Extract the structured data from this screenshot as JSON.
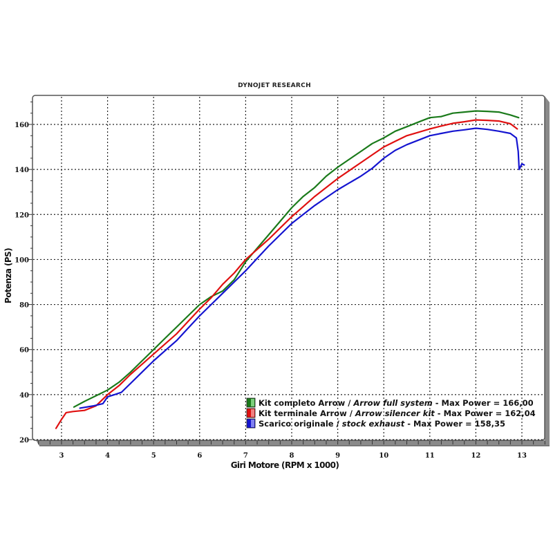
{
  "chart_data": {
    "type": "line",
    "title": "DYNOJET RESEARCH",
    "xlabel": "Giri Motore (RPM x 1000)",
    "ylabel": "Potenza (PS)",
    "xlim": [
      2.4,
      13.5
    ],
    "ylim": [
      19,
      173
    ],
    "x_ticks": [
      3,
      4,
      5,
      6,
      7,
      8,
      9,
      10,
      11,
      12,
      13
    ],
    "y_ticks": [
      20,
      40,
      60,
      80,
      100,
      120,
      140,
      160
    ],
    "grid": true,
    "legend_position": "lower right",
    "series": [
      {
        "name": "Kit completo Arrow / Arrow full system",
        "name_regular": "Kit completo Arrow / ",
        "name_italic": "Arrow full system",
        "suffix": " - Max Power = 166,00",
        "max_power": 166.0,
        "color": "#1a7a1a",
        "swatch_light": "#7ccf7c",
        "points": [
          [
            3.27,
            34.5
          ],
          [
            3.5,
            37
          ],
          [
            3.75,
            39.5
          ],
          [
            4.0,
            42
          ],
          [
            4.25,
            45.5
          ],
          [
            4.5,
            50
          ],
          [
            4.75,
            55
          ],
          [
            5.0,
            60
          ],
          [
            5.25,
            65
          ],
          [
            5.5,
            70
          ],
          [
            5.75,
            75
          ],
          [
            6.0,
            80
          ],
          [
            6.25,
            83.5
          ],
          [
            6.5,
            86
          ],
          [
            6.75,
            91
          ],
          [
            7.0,
            99
          ],
          [
            7.25,
            105
          ],
          [
            7.5,
            111
          ],
          [
            7.75,
            117
          ],
          [
            8.0,
            123
          ],
          [
            8.25,
            128
          ],
          [
            8.5,
            132
          ],
          [
            8.75,
            137
          ],
          [
            9.0,
            141
          ],
          [
            9.25,
            144.5
          ],
          [
            9.5,
            148
          ],
          [
            9.75,
            151.5
          ],
          [
            10.0,
            154
          ],
          [
            10.25,
            157
          ],
          [
            10.5,
            159
          ],
          [
            10.75,
            161
          ],
          [
            11.0,
            163
          ],
          [
            11.25,
            163.5
          ],
          [
            11.5,
            165
          ],
          [
            11.75,
            165.5
          ],
          [
            12.0,
            166
          ],
          [
            12.25,
            165.8
          ],
          [
            12.5,
            165.5
          ],
          [
            12.75,
            164.2
          ],
          [
            12.93,
            163
          ]
        ]
      },
      {
        "name": "Kit terminale Arrow / Arrow silencer kit",
        "name_regular": "Kit terminale Arrow / ",
        "name_italic": "Arrow silencer kit",
        "suffix": " - Max Power = 162,04",
        "max_power": 162.04,
        "color": "#e01010",
        "swatch_light": "#f08080",
        "points": [
          [
            2.88,
            25
          ],
          [
            3.0,
            29
          ],
          [
            3.1,
            32
          ],
          [
            3.25,
            32.5
          ],
          [
            3.5,
            33
          ],
          [
            3.75,
            35
          ],
          [
            4.0,
            40
          ],
          [
            4.25,
            44
          ],
          [
            4.5,
            49
          ],
          [
            4.75,
            53.5
          ],
          [
            5.0,
            58
          ],
          [
            5.25,
            62.5
          ],
          [
            5.5,
            67
          ],
          [
            5.75,
            72.5
          ],
          [
            6.0,
            78
          ],
          [
            6.25,
            83
          ],
          [
            6.5,
            89
          ],
          [
            6.75,
            94
          ],
          [
            7.0,
            100
          ],
          [
            7.25,
            104.5
          ],
          [
            7.5,
            109
          ],
          [
            7.75,
            114
          ],
          [
            8.0,
            119
          ],
          [
            8.25,
            123.5
          ],
          [
            8.5,
            128
          ],
          [
            8.75,
            132
          ],
          [
            9.0,
            136
          ],
          [
            9.25,
            139.5
          ],
          [
            9.5,
            143
          ],
          [
            9.75,
            146.5
          ],
          [
            10.0,
            150
          ],
          [
            10.25,
            152.5
          ],
          [
            10.5,
            155
          ],
          [
            10.75,
            156.5
          ],
          [
            11.0,
            158
          ],
          [
            11.25,
            159.3
          ],
          [
            11.5,
            160.5
          ],
          [
            11.75,
            161.2
          ],
          [
            12.0,
            162
          ],
          [
            12.25,
            161.8
          ],
          [
            12.5,
            161.5
          ],
          [
            12.75,
            160.3
          ],
          [
            12.9,
            158
          ]
        ]
      },
      {
        "name": "Scarico originale / stock exhaust",
        "name_regular": "Scarico originale / ",
        "name_italic": "stock exhaust",
        "suffix": " - Max Power = 158,35",
        "max_power": 158.35,
        "color": "#1414d0",
        "swatch_light": "#8080f0",
        "points": [
          [
            3.4,
            34
          ],
          [
            3.7,
            35
          ],
          [
            3.9,
            36
          ],
          [
            4.0,
            39
          ],
          [
            4.15,
            40
          ],
          [
            4.3,
            41
          ],
          [
            4.5,
            45
          ],
          [
            4.75,
            50
          ],
          [
            5.0,
            55
          ],
          [
            5.25,
            59.5
          ],
          [
            5.5,
            64
          ],
          [
            5.75,
            69.5
          ],
          [
            6.0,
            75
          ],
          [
            6.25,
            80
          ],
          [
            6.5,
            85
          ],
          [
            6.75,
            90
          ],
          [
            7.0,
            95
          ],
          [
            7.25,
            100.5
          ],
          [
            7.5,
            106
          ],
          [
            7.75,
            111
          ],
          [
            8.0,
            116
          ],
          [
            8.25,
            120
          ],
          [
            8.5,
            124
          ],
          [
            8.75,
            127.5
          ],
          [
            9.0,
            131
          ],
          [
            9.25,
            134
          ],
          [
            9.5,
            137
          ],
          [
            9.75,
            140.5
          ],
          [
            10.0,
            145
          ],
          [
            10.25,
            148.5
          ],
          [
            10.5,
            151
          ],
          [
            10.75,
            153
          ],
          [
            11.0,
            155
          ],
          [
            11.25,
            156
          ],
          [
            11.5,
            157
          ],
          [
            11.75,
            157.6
          ],
          [
            12.0,
            158.3
          ],
          [
            12.25,
            157.8
          ],
          [
            12.5,
            157
          ],
          [
            12.75,
            156
          ],
          [
            12.88,
            154
          ],
          [
            12.92,
            148
          ],
          [
            12.94,
            140
          ],
          [
            13.0,
            142.5
          ],
          [
            13.05,
            142
          ]
        ]
      }
    ]
  }
}
